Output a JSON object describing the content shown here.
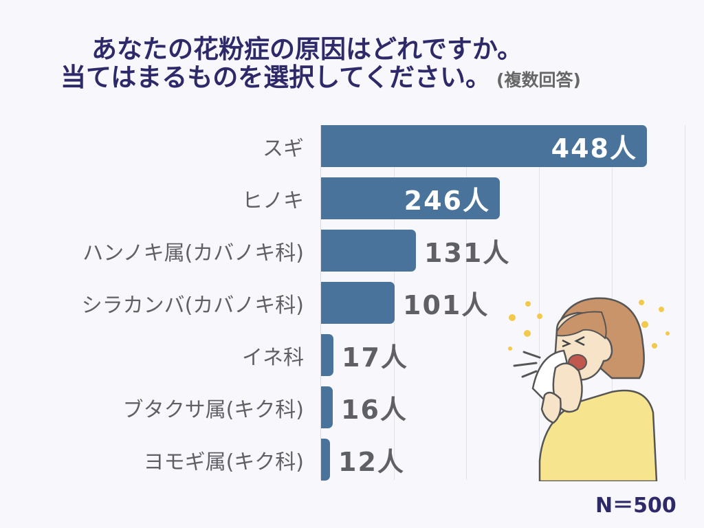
{
  "title": {
    "line1": "あなたの花粉症の原因はどれですか。",
    "line2": "当てはまるものを選択してください。",
    "note": "(複数回答)"
  },
  "sample": "N＝500",
  "colors": {
    "bar": "#4a739c",
    "title": "#2e2a6a",
    "label": "#5f5f66",
    "background": "#f8f8fc"
  },
  "illustration": {
    "icon": "woman-sneezing-tissue-illustration",
    "description": "Woman sneezing into a tissue with pollen particles around her"
  },
  "chart_data": {
    "type": "bar",
    "orientation": "horizontal",
    "title": "あなたの花粉症の原因はどれですか。当てはまるものを選択してください。(複数回答)",
    "xlabel": "",
    "ylabel": "",
    "xlim": [
      0,
      500
    ],
    "grid": true,
    "grid_step": 100,
    "unit": "人",
    "categories": [
      "スギ",
      "ヒノキ",
      "ハンノキ属(カバノキ科)",
      "シラカンバ(カバノキ科)",
      "イネ科",
      "ブタクサ属(キク科)",
      "ヨモギ属(キク科)"
    ],
    "values": [
      448,
      246,
      131,
      101,
      17,
      16,
      12
    ],
    "value_labels": [
      "448人",
      "246人",
      "131人",
      "101人",
      "17人",
      "16人",
      "12人"
    ],
    "n": 500
  }
}
